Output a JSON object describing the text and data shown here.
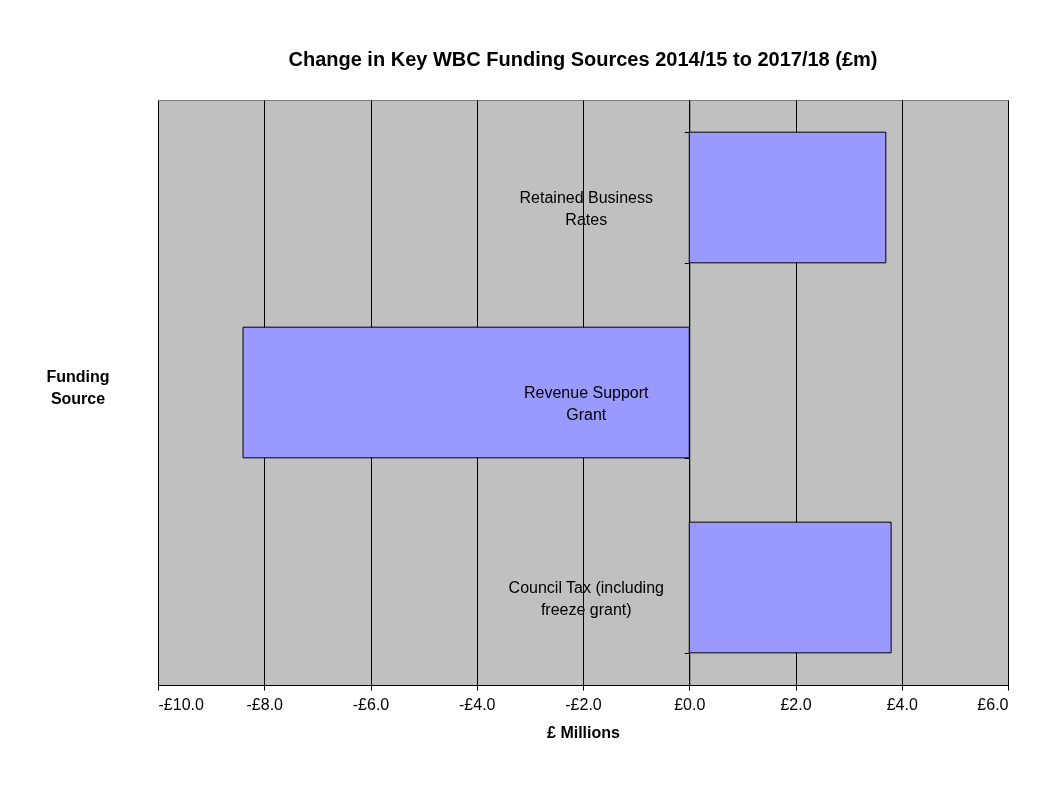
{
  "chart_data": {
    "type": "bar",
    "orientation": "horizontal",
    "title": "Change in Key WBC Funding Sources 2014/15 to 2017/18 (£m)",
    "xlabel": "£ Millions",
    "ylabel": "Funding Source",
    "categories": [
      "Retained Business Rates",
      "Revenue Support Grant",
      "Council Tax (including freeze grant)"
    ],
    "values": [
      3.7,
      -8.4,
      3.8
    ],
    "color": "#9999ff",
    "xlim": [
      -10,
      6
    ],
    "xticks": [
      {
        "value": -10,
        "label": "-£10.0"
      },
      {
        "value": -8,
        "label": "-£8.0"
      },
      {
        "value": -6,
        "label": "-£6.0"
      },
      {
        "value": -4,
        "label": "-£4.0"
      },
      {
        "value": -2,
        "label": "-£2.0"
      },
      {
        "value": 0,
        "label": "£0.0"
      },
      {
        "value": 2,
        "label": "£2.0"
      },
      {
        "value": 4,
        "label": "£4.0"
      },
      {
        "value": 6,
        "label": "£6.0"
      }
    ],
    "grid": "x",
    "legend": false
  }
}
